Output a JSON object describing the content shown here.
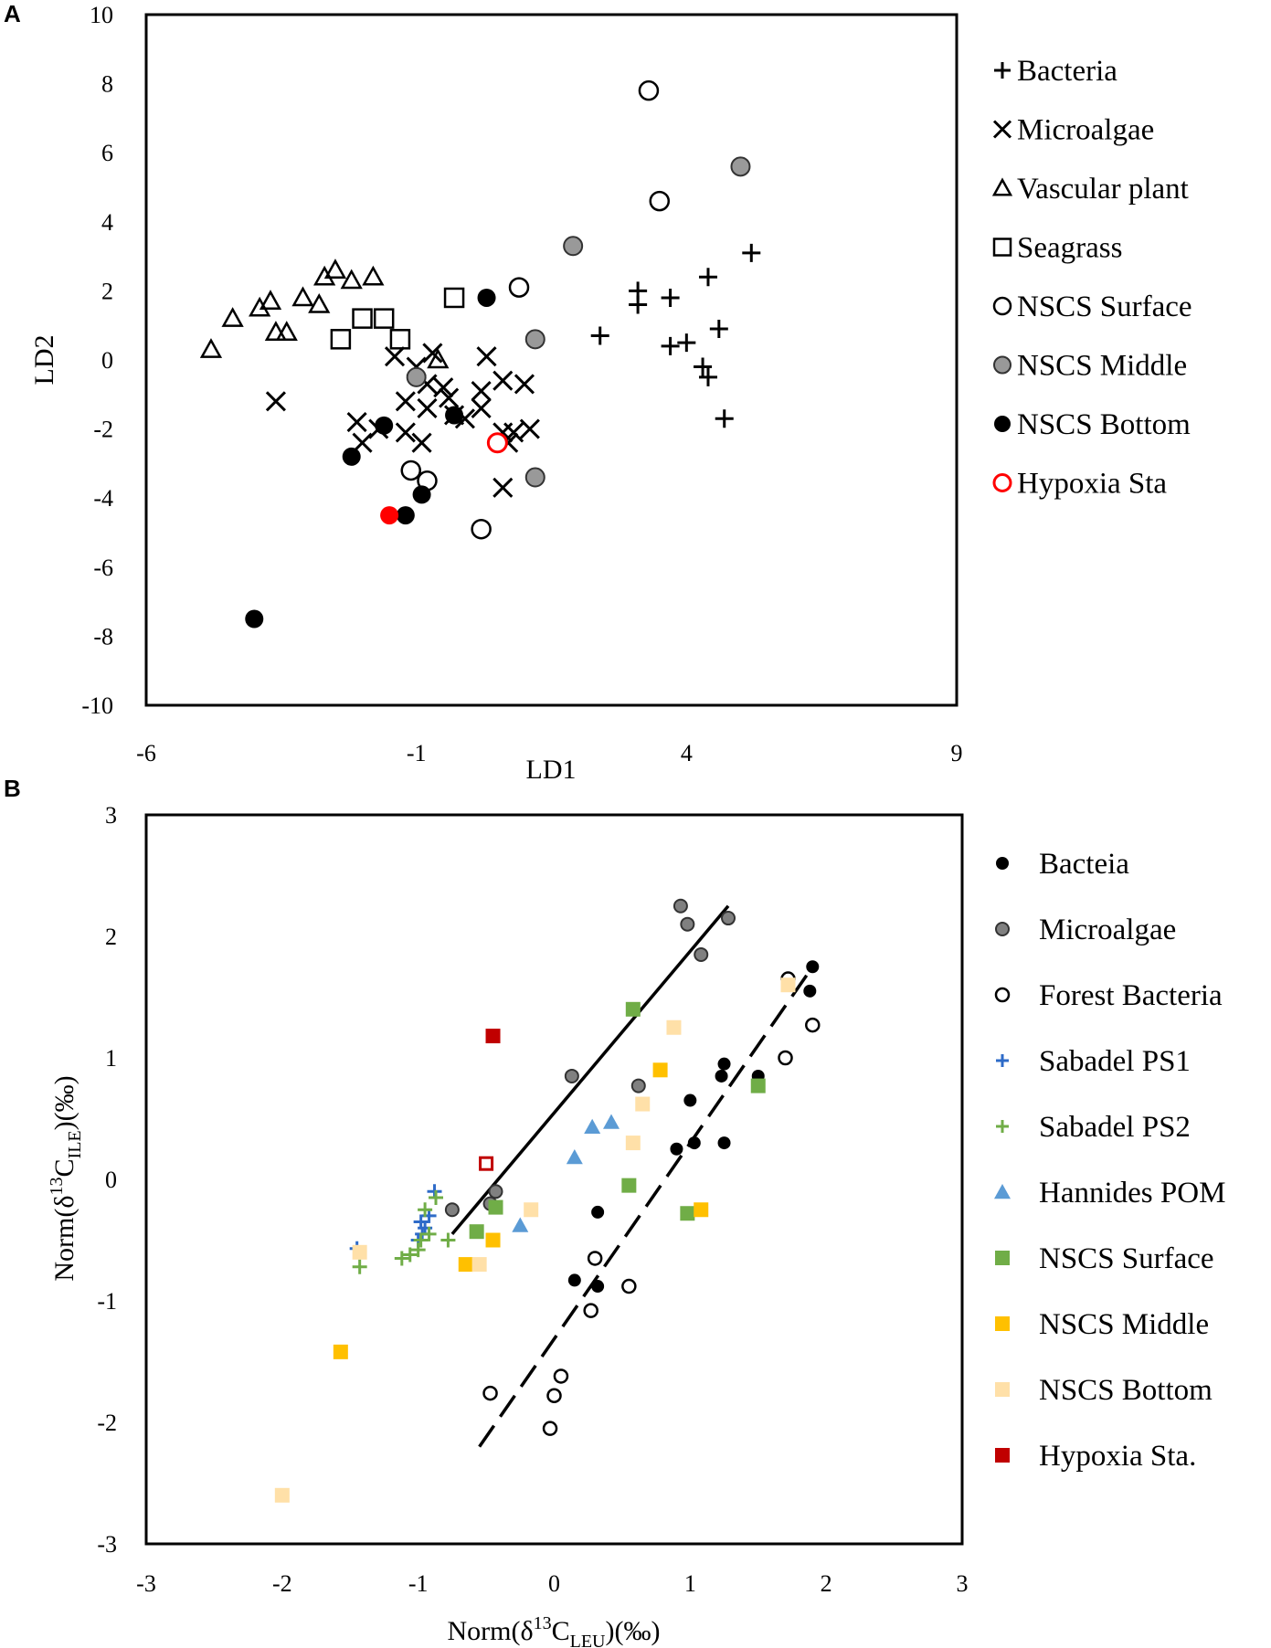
{
  "chart_data": [
    {
      "panel": "A",
      "type": "scatter",
      "xlabel": "LD1",
      "ylabel": "LD2",
      "xlim": [
        -6,
        9
      ],
      "ylim": [
        -10,
        10
      ],
      "xticks": [
        "-6",
        "-1",
        "4",
        "9"
      ],
      "yticks": [
        "10",
        "8",
        "6",
        "4",
        "2",
        "0",
        "-2",
        "-4",
        "-6",
        "-8",
        "-10"
      ],
      "series": [
        {
          "name": "Bacteria",
          "marker": "plus",
          "color": "#000000",
          "points": [
            [
              3.1,
              2.0
            ],
            [
              3.1,
              1.6
            ],
            [
              3.7,
              1.8
            ],
            [
              4.4,
              2.4
            ],
            [
              5.2,
              3.1
            ],
            [
              2.4,
              0.7
            ],
            [
              3.7,
              0.4
            ],
            [
              4.0,
              0.5
            ],
            [
              4.6,
              0.9
            ],
            [
              4.3,
              -0.2
            ],
            [
              4.4,
              -0.5
            ],
            [
              4.7,
              -1.7
            ]
          ]
        },
        {
          "name": "Microalgae",
          "marker": "x",
          "color": "#000000",
          "points": [
            [
              -3.6,
              -1.2
            ],
            [
              -2.1,
              -1.8
            ],
            [
              -2.0,
              -2.4
            ],
            [
              -1.7,
              -2.0
            ],
            [
              -1.2,
              -2.1
            ],
            [
              -1.4,
              0.1
            ],
            [
              -1.0,
              -0.2
            ],
            [
              -0.8,
              -0.7
            ],
            [
              -0.7,
              0.2
            ],
            [
              -1.2,
              -1.2
            ],
            [
              -0.8,
              -1.4
            ],
            [
              -0.5,
              -0.8
            ],
            [
              -0.4,
              -1.1
            ],
            [
              -0.3,
              -1.6
            ],
            [
              -0.1,
              -1.7
            ],
            [
              0.2,
              -1.4
            ],
            [
              0.2,
              -0.9
            ],
            [
              0.3,
              0.1
            ],
            [
              -0.9,
              -2.4
            ],
            [
              0.6,
              -2.1
            ],
            [
              0.8,
              -2.1
            ],
            [
              1.1,
              -2.0
            ],
            [
              0.7,
              -2.4
            ],
            [
              0.6,
              -0.6
            ],
            [
              1.0,
              -0.7
            ],
            [
              0.6,
              -3.7
            ]
          ]
        },
        {
          "name": "Vascular plant",
          "marker": "triangle",
          "color": "#000000",
          "points": [
            [
              -4.8,
              0.3
            ],
            [
              -4.4,
              1.2
            ],
            [
              -3.9,
              1.5
            ],
            [
              -3.7,
              1.7
            ],
            [
              -3.6,
              0.8
            ],
            [
              -3.4,
              0.8
            ],
            [
              -3.1,
              1.8
            ],
            [
              -2.8,
              1.6
            ],
            [
              -2.7,
              2.4
            ],
            [
              -2.5,
              2.6
            ],
            [
              -2.2,
              2.3
            ],
            [
              -1.8,
              2.4
            ],
            [
              -0.6,
              0.0
            ]
          ]
        },
        {
          "name": "Seagrass",
          "marker": "square",
          "color": "#000000",
          "points": [
            [
              -0.3,
              1.8
            ],
            [
              -2.0,
              1.2
            ],
            [
              -1.6,
              1.2
            ],
            [
              -2.4,
              0.6
            ],
            [
              -1.3,
              0.6
            ]
          ]
        },
        {
          "name": "NSCS Surface",
          "marker": "circle-open",
          "color": "#000000",
          "points": [
            [
              3.3,
              7.8
            ],
            [
              3.5,
              4.6
            ],
            [
              0.9,
              2.1
            ],
            [
              -1.1,
              -3.2
            ],
            [
              -0.8,
              -3.5
            ],
            [
              0.2,
              -4.9
            ]
          ]
        },
        {
          "name": "NSCS Middle",
          "marker": "circle-gray",
          "color": "#999999",
          "points": [
            [
              5.0,
              5.6
            ],
            [
              1.9,
              3.3
            ],
            [
              1.2,
              0.6
            ],
            [
              -1.0,
              -0.5
            ],
            [
              1.2,
              -3.4
            ]
          ]
        },
        {
          "name": "NSCS Bottom",
          "marker": "circle-black",
          "color": "#000000",
          "points": [
            [
              0.3,
              1.8
            ],
            [
              -0.3,
              -1.6
            ],
            [
              -1.6,
              -1.9
            ],
            [
              -2.2,
              -2.8
            ],
            [
              -0.9,
              -3.9
            ],
            [
              -1.2,
              -4.5
            ],
            [
              -4.0,
              -7.5
            ]
          ]
        },
        {
          "name": "Hypoxia Sta",
          "marker": "circle-red",
          "color": "#ff0000",
          "points": [
            [
              0.5,
              -2.4
            ],
            [
              -1.5,
              -4.5
            ]
          ]
        }
      ]
    },
    {
      "panel": "B",
      "type": "scatter",
      "xlabel": "Norm(δ13CLEU)(‰)",
      "ylabel": "Norm(δ13CILE)(‰)",
      "xlim": [
        -3,
        3
      ],
      "ylim": [
        -3,
        3
      ],
      "xticks": [
        "-3",
        "-2",
        "-1",
        "0",
        "1",
        "2",
        "3"
      ],
      "yticks": [
        "3",
        "2",
        "1",
        "0",
        "-1",
        "-2",
        "-3"
      ],
      "lines": [
        {
          "style": "solid",
          "from": [
            -0.75,
            -0.45
          ],
          "to": [
            1.28,
            2.25
          ]
        },
        {
          "style": "dashed",
          "from": [
            -0.55,
            -2.2
          ],
          "to": [
            1.9,
            1.75
          ]
        }
      ],
      "series": [
        {
          "name": "Bacteia",
          "marker": "circle-black",
          "color": "#000000",
          "points": [
            [
              1.9,
              1.75
            ],
            [
              1.88,
              1.55
            ],
            [
              1.5,
              0.85
            ],
            [
              1.25,
              0.95
            ],
            [
              1.23,
              0.85
            ],
            [
              1.25,
              0.3
            ],
            [
              1.0,
              0.65
            ],
            [
              1.03,
              0.3
            ],
            [
              0.9,
              0.25
            ],
            [
              0.32,
              -0.27
            ],
            [
              0.15,
              -0.83
            ],
            [
              0.32,
              -0.88
            ]
          ]
        },
        {
          "name": "Microalgae",
          "marker": "circle-gray",
          "color": "#808080",
          "points": [
            [
              0.93,
              2.25
            ],
            [
              0.98,
              2.1
            ],
            [
              1.28,
              2.15
            ],
            [
              1.08,
              1.85
            ],
            [
              0.62,
              0.77
            ],
            [
              0.13,
              0.85
            ],
            [
              -0.43,
              -0.1
            ],
            [
              -0.47,
              -0.2
            ],
            [
              -0.75,
              -0.25
            ]
          ]
        },
        {
          "name": "Forest Bacteria",
          "marker": "circle-open",
          "color": "#000000",
          "points": [
            [
              1.72,
              1.65
            ],
            [
              1.9,
              1.27
            ],
            [
              1.7,
              1.0
            ],
            [
              0.3,
              -0.65
            ],
            [
              0.55,
              -0.88
            ],
            [
              0.27,
              -1.08
            ],
            [
              0.05,
              -1.62
            ],
            [
              0.0,
              -1.78
            ],
            [
              -0.47,
              -1.76
            ],
            [
              -0.03,
              -2.05
            ]
          ]
        },
        {
          "name": "Sabadel PS1",
          "marker": "plus",
          "color": "#2e6bc8",
          "points": [
            [
              -1.45,
              -0.57
            ],
            [
              -0.88,
              -0.1
            ],
            [
              -0.92,
              -0.3
            ],
            [
              -0.95,
              -0.4
            ],
            [
              -0.97,
              -0.45
            ],
            [
              -1.0,
              -0.5
            ],
            [
              -0.98,
              -0.35
            ]
          ]
        },
        {
          "name": "Sabadel PS2",
          "marker": "plus",
          "color": "#70ad47",
          "points": [
            [
              -1.43,
              -0.72
            ],
            [
              -1.12,
              -0.65
            ],
            [
              -1.06,
              -0.62
            ],
            [
              -1.0,
              -0.58
            ],
            [
              -0.98,
              -0.5
            ],
            [
              -0.92,
              -0.45
            ],
            [
              -0.95,
              -0.25
            ],
            [
              -0.87,
              -0.15
            ],
            [
              -0.78,
              -0.5
            ]
          ]
        },
        {
          "name": "Hannides POM",
          "marker": "triangle",
          "color": "#5b9bd5",
          "points": [
            [
              0.15,
              0.18
            ],
            [
              0.28,
              0.43
            ],
            [
              0.42,
              0.47
            ],
            [
              -0.25,
              -0.38
            ]
          ]
        },
        {
          "name": "NSCS Surface",
          "marker": "square",
          "color": "#70ad47",
          "points": [
            [
              0.58,
              1.4
            ],
            [
              1.5,
              0.77
            ],
            [
              0.55,
              -0.05
            ],
            [
              0.98,
              -0.28
            ],
            [
              -0.43,
              -0.23
            ],
            [
              -0.57,
              -0.43
            ]
          ]
        },
        {
          "name": "NSCS Middle",
          "marker": "square",
          "color": "#ffc000",
          "points": [
            [
              0.78,
              0.9
            ],
            [
              1.08,
              -0.25
            ],
            [
              -0.45,
              -0.5
            ],
            [
              -0.65,
              -0.7
            ],
            [
              -1.57,
              -1.42
            ]
          ]
        },
        {
          "name": "NSCS Bottom",
          "marker": "square",
          "color": "#ffe0a8",
          "points": [
            [
              1.72,
              1.6
            ],
            [
              0.88,
              1.25
            ],
            [
              0.65,
              0.62
            ],
            [
              0.58,
              0.3
            ],
            [
              -0.17,
              -0.25
            ],
            [
              -1.43,
              -0.6
            ],
            [
              -0.55,
              -0.7
            ],
            [
              -2.0,
              -2.6
            ]
          ]
        },
        {
          "name": "Hypoxia Sta.",
          "marker": "square",
          "color": "#c00000",
          "points": [
            [
              -0.45,
              1.18
            ]
          ]
        },
        {
          "name": "Hypoxia Sta. (open)",
          "marker": "square-open",
          "color": "#c00000",
          "legend": false,
          "points": [
            [
              -0.5,
              0.13
            ]
          ]
        }
      ]
    }
  ],
  "panels": {
    "a": {
      "letter": "A",
      "xlabel": "LD1",
      "ylabel": "LD2",
      "legend": [
        "Bacteria",
        "Microalgae",
        "Vascular plant",
        "Seagrass",
        "NSCS Surface",
        "NSCS Middle",
        "NSCS Bottom",
        "Hypoxia Sta"
      ]
    },
    "b": {
      "letter": "B",
      "xlabel": {
        "pre": "Norm(δ",
        "sup": "13",
        "mid": "C",
        "sub": "LEU",
        "post": ")(‰)"
      },
      "ylabel": {
        "pre": "Norm(δ",
        "sup": "13",
        "mid": "C",
        "sub": "ILE",
        "post": ")(‰)"
      },
      "legend": [
        "Bacteia",
        "Microalgae",
        "Forest Bacteria",
        "Sabadel PS1",
        "Sabadel PS2",
        "Hannides POM",
        "NSCS Surface",
        "NSCS Middle",
        "NSCS Bottom",
        "Hypoxia Sta."
      ]
    }
  }
}
